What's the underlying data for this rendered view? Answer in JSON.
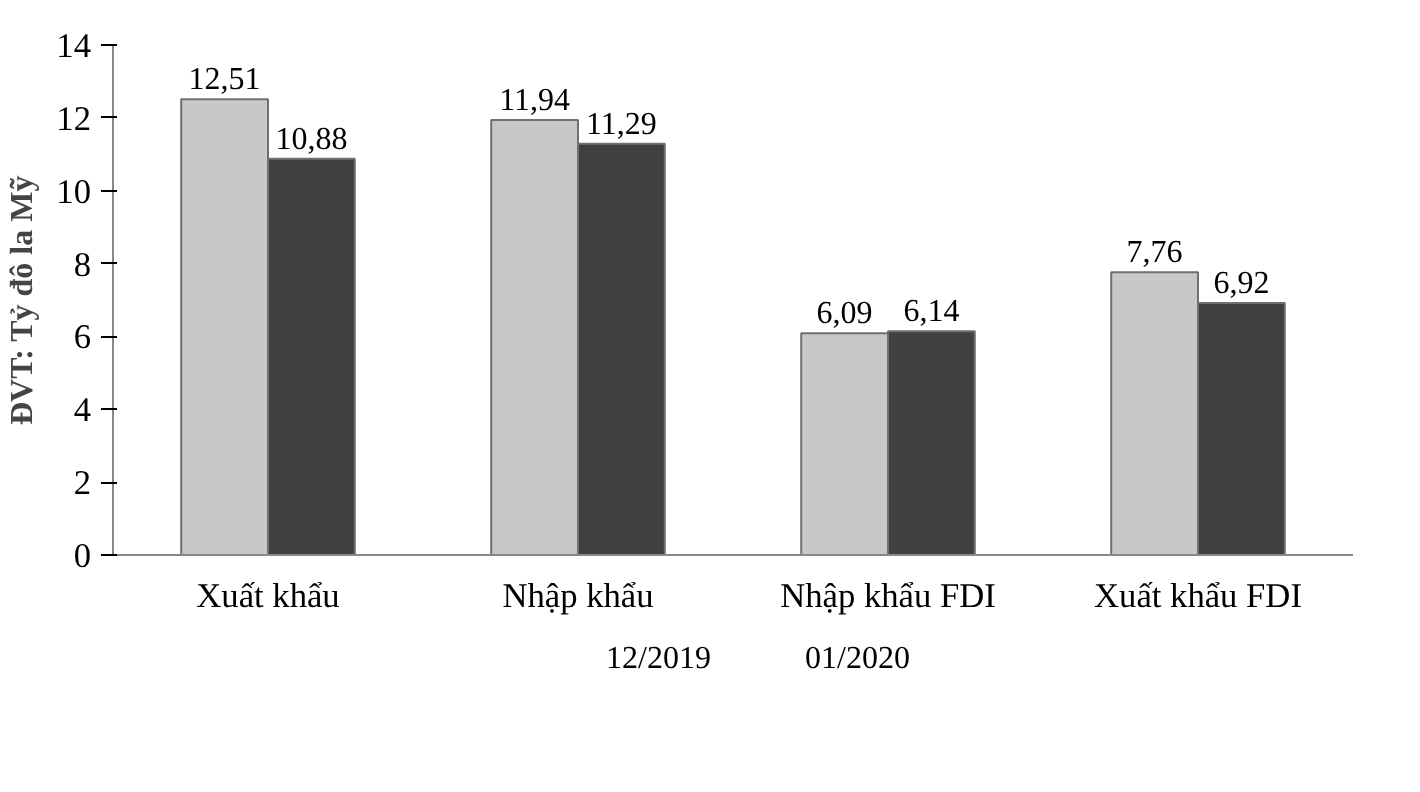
{
  "chart_data": {
    "type": "bar",
    "ylabel": "ĐVT: Tỷ đô la Mỹ",
    "categories": [
      "Xuất khẩu",
      "Nhập khẩu",
      "Nhập khẩu FDI",
      "Xuất khẩu FDI"
    ],
    "series": [
      {
        "name": "12/2019",
        "color": "#c8c8c8",
        "values": [
          12.51,
          11.94,
          6.09,
          7.76
        ],
        "value_labels": [
          "12,51",
          "11,94",
          "6,09",
          "7,76"
        ]
      },
      {
        "name": "01/2020",
        "color": "#404040",
        "values": [
          10.88,
          11.29,
          6.14,
          6.92
        ],
        "value_labels": [
          "10,88",
          "11,29",
          "6,14",
          "6,92"
        ]
      }
    ],
    "ylim": [
      0,
      14
    ],
    "yticks": [
      0,
      2,
      4,
      6,
      8,
      10,
      12,
      14
    ],
    "grid": false,
    "legend": "bottom"
  }
}
